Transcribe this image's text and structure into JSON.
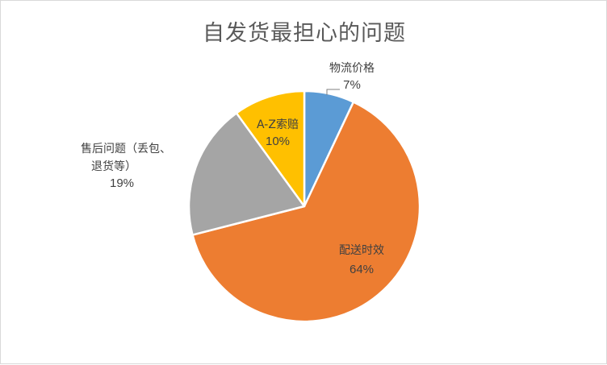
{
  "chart_data": {
    "type": "pie",
    "title": "自发货最担心的问题",
    "categories": [
      "物流价格",
      "配送时效",
      "售后问题（丢包、退货等）",
      "A-Z索赔"
    ],
    "values": [
      7,
      64,
      19,
      10
    ],
    "labels": {
      "wuliu": {
        "name": "物流价格",
        "pct": "7%"
      },
      "peisong": {
        "name": "配送时效",
        "pct": "64%"
      },
      "shouhou": {
        "name_line1": "售后问题（丢包、",
        "name_line2": "退货等）",
        "pct": "19%"
      },
      "az": {
        "name": "A-Z索赔",
        "pct": "10%"
      }
    },
    "colors": [
      "#5B9BD5",
      "#ED7D31",
      "#A5A5A5",
      "#FFC000"
    ],
    "legend": "none",
    "start_angle": "12 o'clock, clockwise"
  }
}
